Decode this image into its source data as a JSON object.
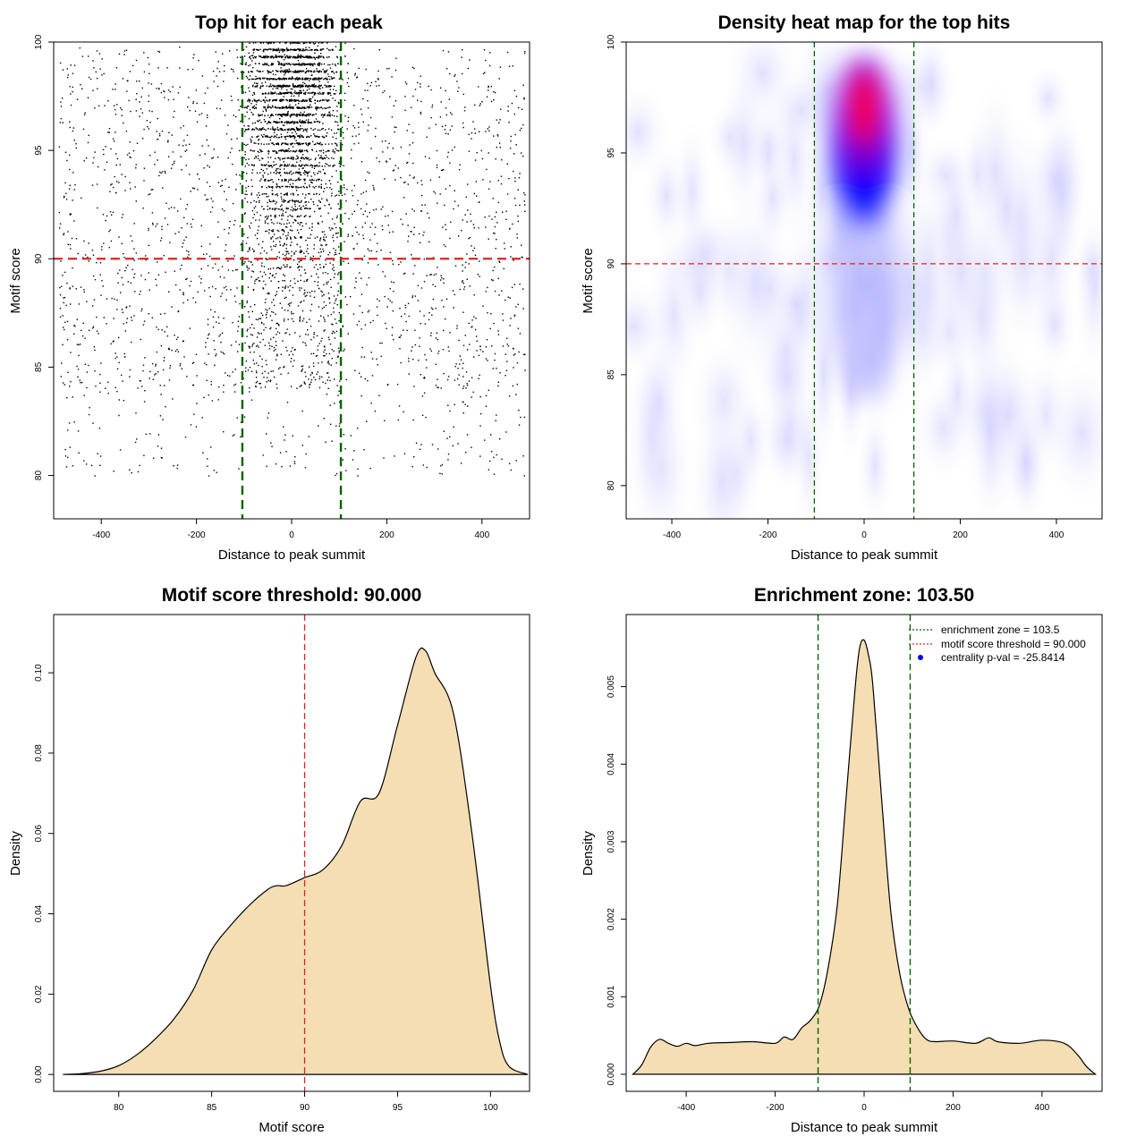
{
  "chart_data": [
    {
      "type": "scatter",
      "title": "Top hit for each peak",
      "xlabel": "Distance to peak summit",
      "ylabel": "Motif score",
      "xlim": [
        -500,
        500
      ],
      "ylim": [
        78,
        100
      ],
      "x_ticks": [
        "-400",
        "-200",
        "0",
        "200",
        "400"
      ],
      "y_ticks": [
        "80",
        "85",
        "90",
        "95",
        "100"
      ],
      "grid": false,
      "vlines": [
        -103.5,
        103.5
      ],
      "hline": 90,
      "line_colors": {
        "vertical": "#006400",
        "horizontal": "#dd2222"
      },
      "point_color": "#000000",
      "distribution": {
        "background_range_x": [
          -490,
          490
        ],
        "central_range_x": [
          -80,
          80
        ],
        "central_score_range": [
          85,
          100
        ],
        "note": "dense central band around summit, sparse uniform background"
      }
    },
    {
      "type": "heatmap",
      "title": "Density heat map for the top hits",
      "xlabel": "Distance to peak summit",
      "ylabel": "Motif score",
      "xlim": [
        -495,
        495
      ],
      "ylim": [
        78.5,
        100
      ],
      "x_ticks": [
        "-400",
        "-200",
        "0",
        "200",
        "400"
      ],
      "y_ticks": [
        "80",
        "85",
        "90",
        "95",
        "100"
      ],
      "vlines": [
        -103.5,
        103.5
      ],
      "hline": 90,
      "colors": {
        "low": "#ffffff",
        "mid": "#0000ff",
        "high": "#ff0000"
      },
      "peak": {
        "x": 0,
        "y": 97
      }
    },
    {
      "type": "area",
      "title": "Motif score threshold: 90.000",
      "xlabel": "Motif score",
      "ylabel": "Density",
      "xlim": [
        76.5,
        102.1
      ],
      "ylim": [
        0,
        0.11
      ],
      "x_ticks": [
        "80",
        "85",
        "90",
        "95",
        "100"
      ],
      "y_ticks": [
        "0.00",
        "0.02",
        "0.04",
        "0.06",
        "0.08",
        "0.10"
      ],
      "vline": 90,
      "fill": "#f5deb3",
      "x": [
        77,
        78,
        79,
        80,
        81,
        82,
        83,
        84,
        85,
        86,
        87,
        88,
        88.5,
        89,
        90,
        91,
        92,
        93,
        94,
        95,
        96,
        96.5,
        97,
        98,
        99,
        100,
        100.5,
        101,
        102
      ],
      "y": [
        0,
        0.0002,
        0.0008,
        0.0022,
        0.005,
        0.009,
        0.014,
        0.021,
        0.031,
        0.037,
        0.042,
        0.046,
        0.047,
        0.047,
        0.049,
        0.051,
        0.057,
        0.068,
        0.07,
        0.087,
        0.104,
        0.1055,
        0.1,
        0.09,
        0.06,
        0.022,
        0.008,
        0.002,
        0
      ]
    },
    {
      "type": "area",
      "title": "Enrichment zone: 103.50",
      "xlabel": "Distance to peak summit",
      "ylabel": "Density",
      "xlim": [
        -535,
        535
      ],
      "ylim": [
        0,
        0.0058
      ],
      "x_ticks": [
        "-400",
        "-200",
        "0",
        "200",
        "400"
      ],
      "y_ticks": [
        "0.000",
        "0.001",
        "0.002",
        "0.003",
        "0.004",
        "0.005"
      ],
      "vlines": [
        -103.5,
        103.5
      ],
      "fill": "#f5deb3",
      "legend": {
        "position": "top-right",
        "items": [
          "enrichment zone = 103.5",
          "motif score threshold = 90.000",
          "centrality p-val = -25.8414"
        ],
        "colors": [
          "#006400",
          "#dd2222",
          "#0000ff"
        ]
      },
      "x": [
        -520,
        -500,
        -480,
        -460,
        -440,
        -420,
        -400,
        -380,
        -350,
        -300,
        -250,
        -200,
        -180,
        -160,
        -140,
        -120,
        -100,
        -80,
        -60,
        -40,
        -20,
        -10,
        0,
        10,
        20,
        40,
        60,
        80,
        100,
        120,
        140,
        160,
        200,
        250,
        280,
        300,
        350,
        400,
        450,
        480,
        500,
        520
      ],
      "y": [
        0,
        0.00012,
        0.00035,
        0.00045,
        0.0004,
        0.00036,
        0.0004,
        0.00037,
        0.0004,
        0.00041,
        0.00042,
        0.0004,
        0.00048,
        0.00045,
        0.0006,
        0.0007,
        0.0009,
        0.0014,
        0.0022,
        0.0036,
        0.005,
        0.0055,
        0.0056,
        0.0054,
        0.005,
        0.0035,
        0.0021,
        0.0013,
        0.00085,
        0.0006,
        0.00045,
        0.00042,
        0.00043,
        0.0004,
        0.00047,
        0.00042,
        0.0004,
        0.00044,
        0.0004,
        0.00025,
        0.0001,
        0
      ]
    }
  ]
}
